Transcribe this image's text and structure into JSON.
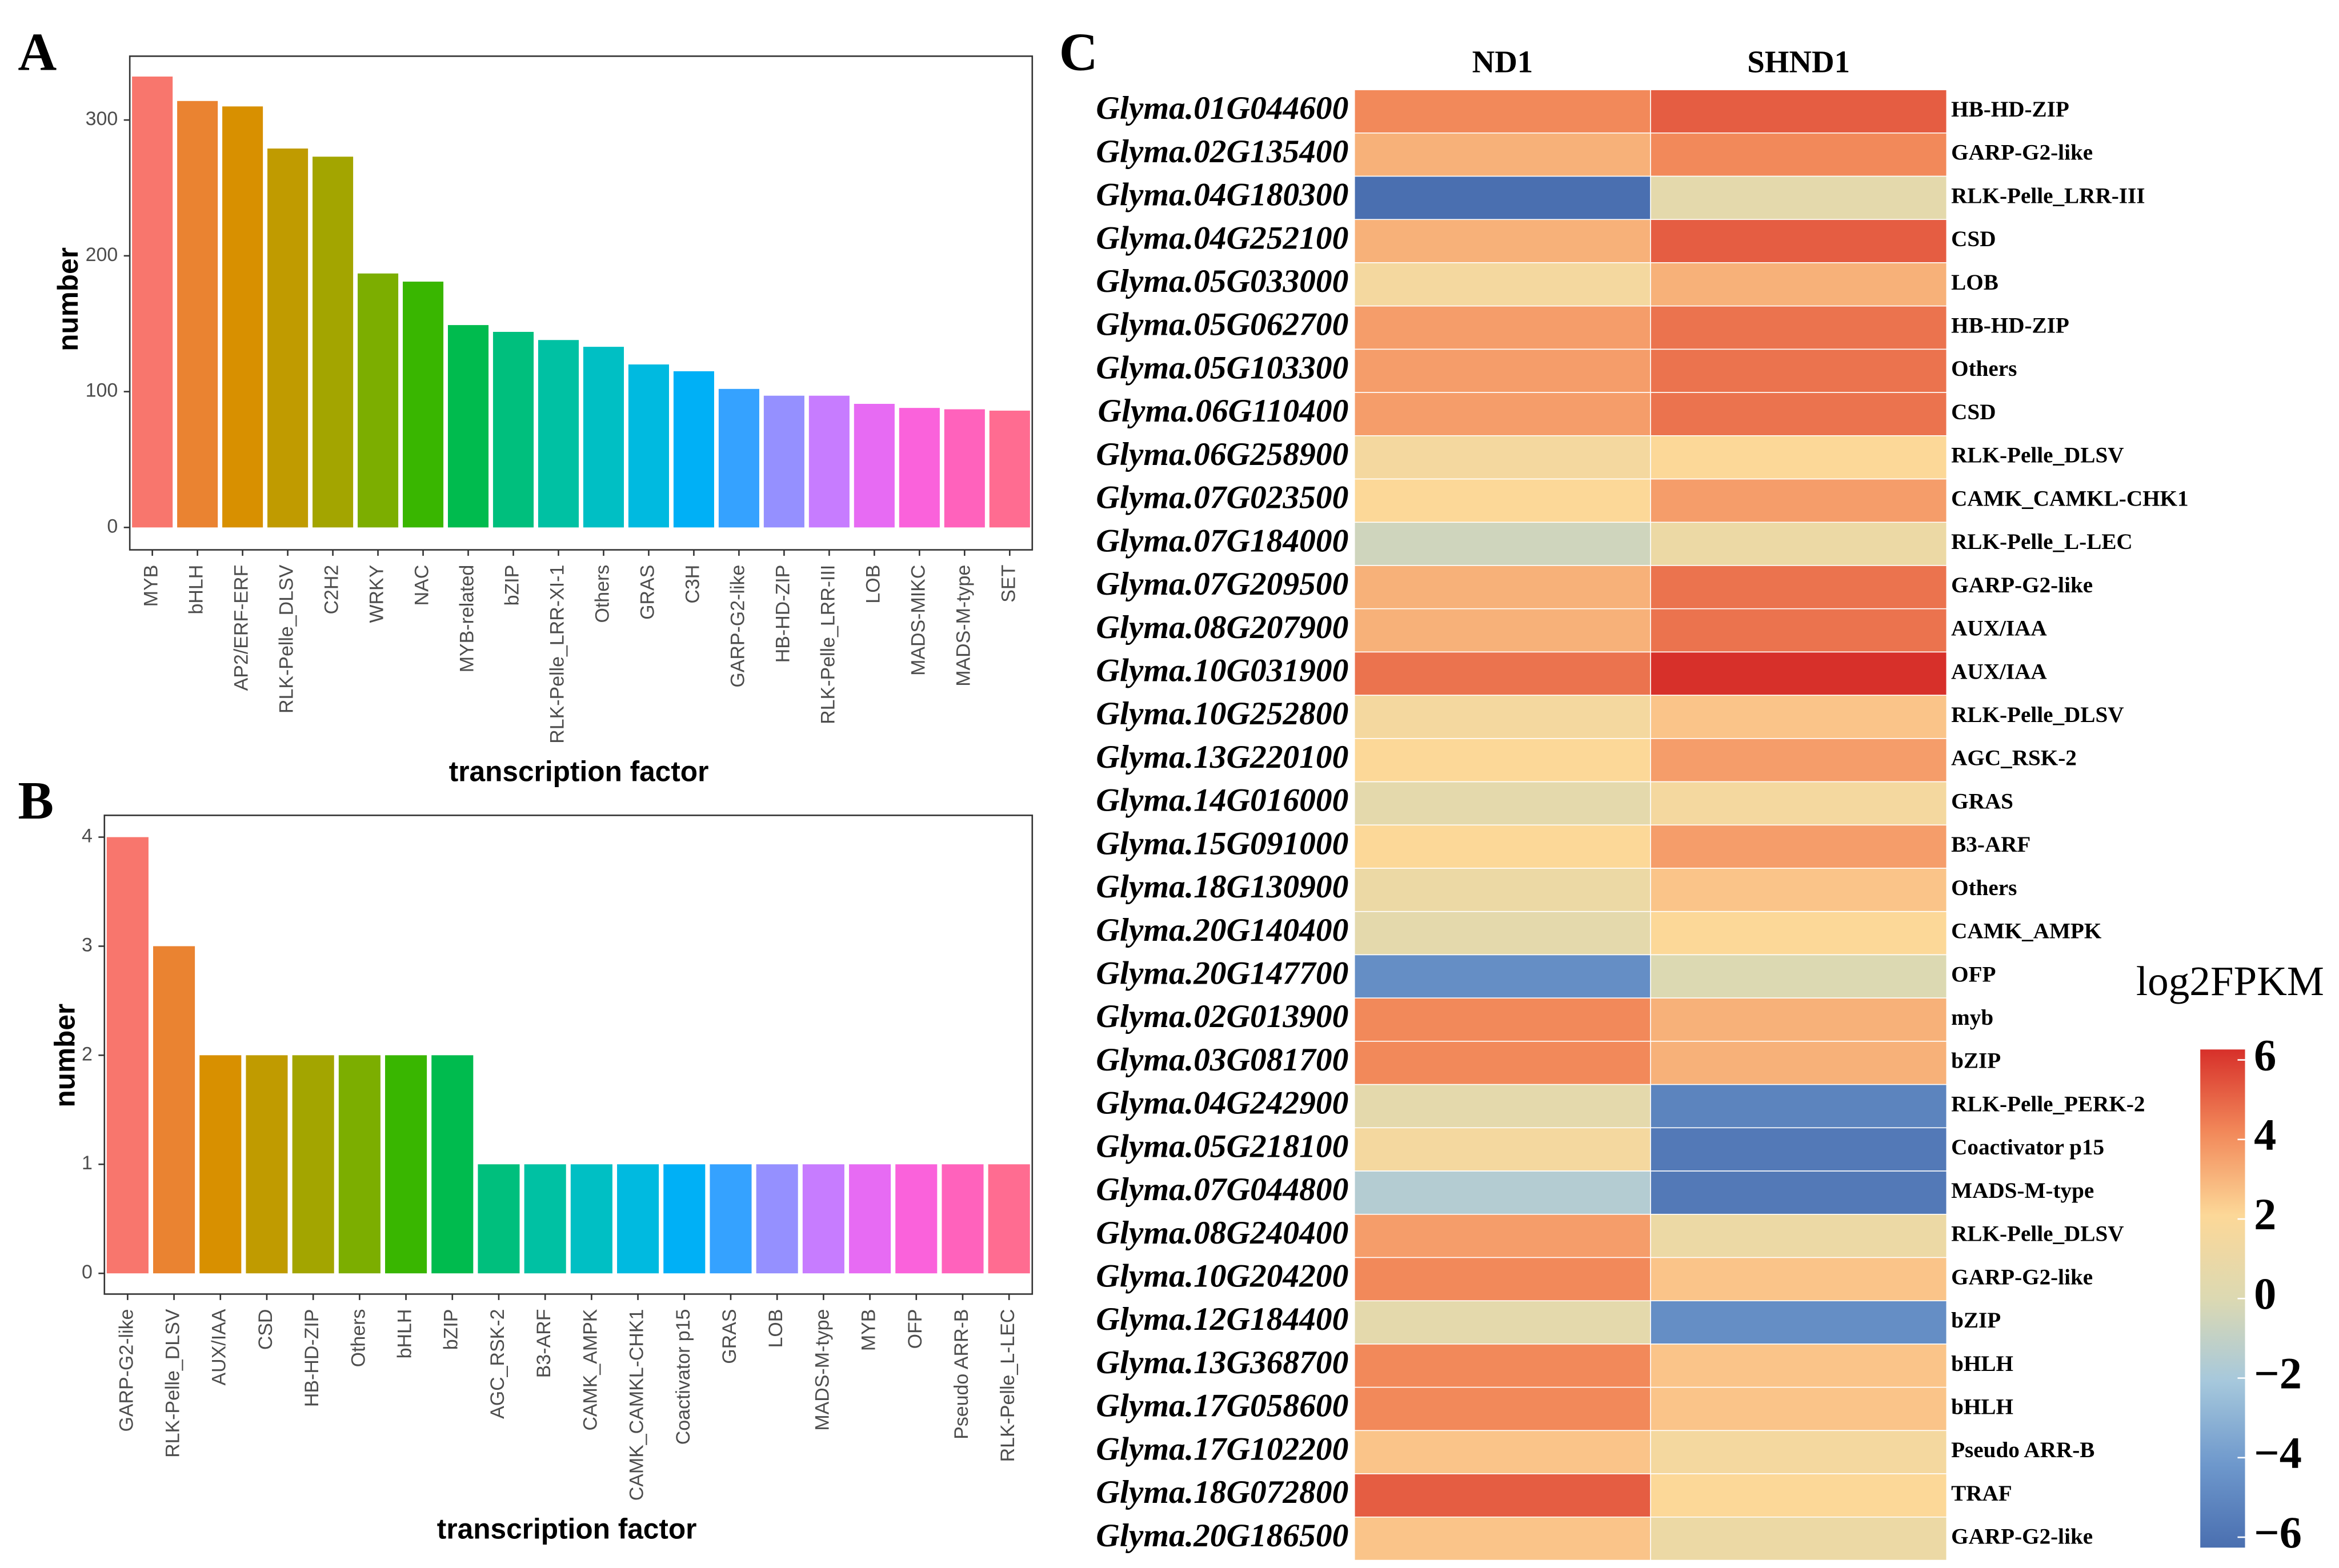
{
  "chart_data": [
    {
      "type": "bar",
      "panel_label": "A",
      "xlabel": "transcription factor",
      "ylabel": "number",
      "categories": [
        "MYB",
        "bHLH",
        "AP2/ERF-ERF",
        "RLK-Pelle_DLSV",
        "C2H2",
        "WRKY",
        "NAC",
        "MYB-related",
        "bZIP",
        "RLK-Pelle_LRR-XI-1",
        "Others",
        "GRAS",
        "C3H",
        "GARP-G2-like",
        "HB-HD-ZIP",
        "RLK-Pelle_LRR-III",
        "LOB",
        "MADS-MIKC",
        "MADS-M-type",
        "SET"
      ],
      "values": [
        332,
        314,
        310,
        279,
        273,
        187,
        181,
        149,
        144,
        138,
        133,
        120,
        115,
        102,
        97,
        97,
        91,
        88,
        87,
        86
      ],
      "colors": [
        "#F8766D",
        "#EA8331",
        "#D89000",
        "#C09B00",
        "#A3A500",
        "#7CAE00",
        "#39B600",
        "#00BB4E",
        "#00BF7D",
        "#00C1A3",
        "#00BFC4",
        "#00BAE0",
        "#00B0F6",
        "#35A2FF",
        "#9590FF",
        "#C77CFF",
        "#E76BF3",
        "#FA62DB",
        "#FF62BC",
        "#FF6C91"
      ],
      "ylim": [
        -16.5,
        347
      ],
      "yticks": [
        0,
        100,
        200,
        300
      ],
      "grid": false
    },
    {
      "type": "bar",
      "panel_label": "B",
      "xlabel": "transcription factor",
      "ylabel": "number",
      "categories": [
        "GARP-G2-like",
        "RLK-Pelle_DLSV",
        "AUX/IAA",
        "CSD",
        "HB-HD-ZIP",
        "Others",
        "bHLH",
        "bZIP",
        "AGC_RSK-2",
        "B3-ARF",
        "CAMK_AMPK",
        "CAMK_CAMKL-CHK1",
        "Coactivator p15",
        "GRAS",
        "LOB",
        "MADS-M-type",
        "MYB",
        "OFP",
        "Pseudo ARR-B",
        "RLK-Pelle_L-LEC"
      ],
      "values": [
        4,
        3,
        2,
        2,
        2,
        2,
        2,
        2,
        1,
        1,
        1,
        1,
        1,
        1,
        1,
        1,
        1,
        1,
        1,
        1
      ],
      "colors": [
        "#F8766D",
        "#EA8331",
        "#D89000",
        "#C09B00",
        "#A3A500",
        "#7CAE00",
        "#39B600",
        "#00BB4E",
        "#00BF7D",
        "#00C1A3",
        "#00BFC4",
        "#00BAE0",
        "#00B0F6",
        "#35A2FF",
        "#9590FF",
        "#C77CFF",
        "#E76BF3",
        "#FA62DB",
        "#FF62BC",
        "#FF6C91"
      ],
      "ylim": [
        -0.19,
        4.2
      ],
      "yticks": [
        0,
        1,
        2,
        3,
        4
      ],
      "grid": false
    },
    {
      "type": "heatmap",
      "panel_label": "C",
      "columns": [
        "ND1",
        "SHND1"
      ],
      "rows": [
        "Glyma.01G044600",
        "Glyma.02G135400",
        "Glyma.04G180300",
        "Glyma.04G252100",
        "Glyma.05G033000",
        "Glyma.05G062700",
        "Glyma.05G103300",
        "Glyma.06G110400",
        "Glyma.06G258900",
        "Glyma.07G023500",
        "Glyma.07G184000",
        "Glyma.07G209500",
        "Glyma.08G207900",
        "Glyma.10G031900",
        "Glyma.10G252800",
        "Glyma.13G220100",
        "Glyma.14G016000",
        "Glyma.15G091000",
        "Glyma.18G130900",
        "Glyma.20G140400",
        "Glyma.20G147700",
        "Glyma.02G013900",
        "Glyma.03G081700",
        "Glyma.04G242900",
        "Glyma.05G218100",
        "Glyma.07G044800",
        "Glyma.08G240400",
        "Glyma.10G204200",
        "Glyma.12G184400",
        "Glyma.13G368700",
        "Glyma.17G058600",
        "Glyma.17G102200",
        "Glyma.18G072800",
        "Glyma.20G186500"
      ],
      "row_annotations": [
        "HB-HD-ZIP",
        "GARP-G2-like",
        "RLK-Pelle_LRR-III",
        "CSD",
        "LOB",
        "HB-HD-ZIP",
        "Others",
        "CSD",
        "RLK-Pelle_DLSV",
        "CAMK_CAMKL-CHK1",
        "RLK-Pelle_L-LEC",
        "GARP-G2-like",
        "AUX/IAA",
        "AUX/IAA",
        "RLK-Pelle_DLSV",
        "AGC_RSK-2",
        "GRAS",
        "B3-ARF",
        "Others",
        "CAMK_AMPK",
        "OFP",
        "myb",
        "bZIP",
        "RLK-Pelle_PERK-2",
        "Coactivator p15",
        "MADS-M-type",
        "RLK-Pelle_DLSV",
        "GARP-G2-like",
        "bZIP",
        "bHLH",
        "bHLH",
        "Pseudo ARR-B",
        "TRAF",
        "GARP-G2-like"
      ],
      "values": [
        [
          4,
          5
        ],
        [
          3,
          4
        ],
        [
          -6,
          0.5
        ],
        [
          3,
          5
        ],
        [
          1.5,
          3
        ],
        [
          3.5,
          4.5
        ],
        [
          3.5,
          4.5
        ],
        [
          3.5,
          4.5
        ],
        [
          1.5,
          2
        ],
        [
          2,
          3.5
        ],
        [
          -0.5,
          1
        ],
        [
          3,
          4.5
        ],
        [
          3,
          4.5
        ],
        [
          4.5,
          6
        ],
        [
          1.5,
          2.5
        ],
        [
          2,
          3.5
        ],
        [
          0.5,
          1.5
        ],
        [
          2,
          3.5
        ],
        [
          1,
          2.5
        ],
        [
          0.5,
          2
        ],
        [
          -4.5,
          0
        ],
        [
          4,
          3
        ],
        [
          4,
          3
        ],
        [
          0.5,
          -5
        ],
        [
          1.5,
          -5.5
        ],
        [
          -1.5,
          -5.5
        ],
        [
          3.5,
          1
        ],
        [
          4,
          2.5
        ],
        [
          0.5,
          -4.5
        ],
        [
          4,
          2.5
        ],
        [
          4,
          2.5
        ],
        [
          2.5,
          1.5
        ],
        [
          5,
          2
        ],
        [
          2.5,
          1
        ]
      ],
      "colorbar_title": "log2FPKM",
      "clim": [
        -6,
        6
      ],
      "cticks": [
        6,
        4,
        2,
        0,
        {
          "value": -2,
          "label": "−2"
        },
        {
          "value": -4,
          "label": "−4"
        },
        {
          "value": -6,
          "label": "−6"
        }
      ],
      "colorscale": [
        "#4a6fb0",
        "#6e98cc",
        "#a6c8dc",
        "#dcd9b2",
        "#fcd898",
        "#f2895a",
        "#d7302a"
      ]
    }
  ]
}
